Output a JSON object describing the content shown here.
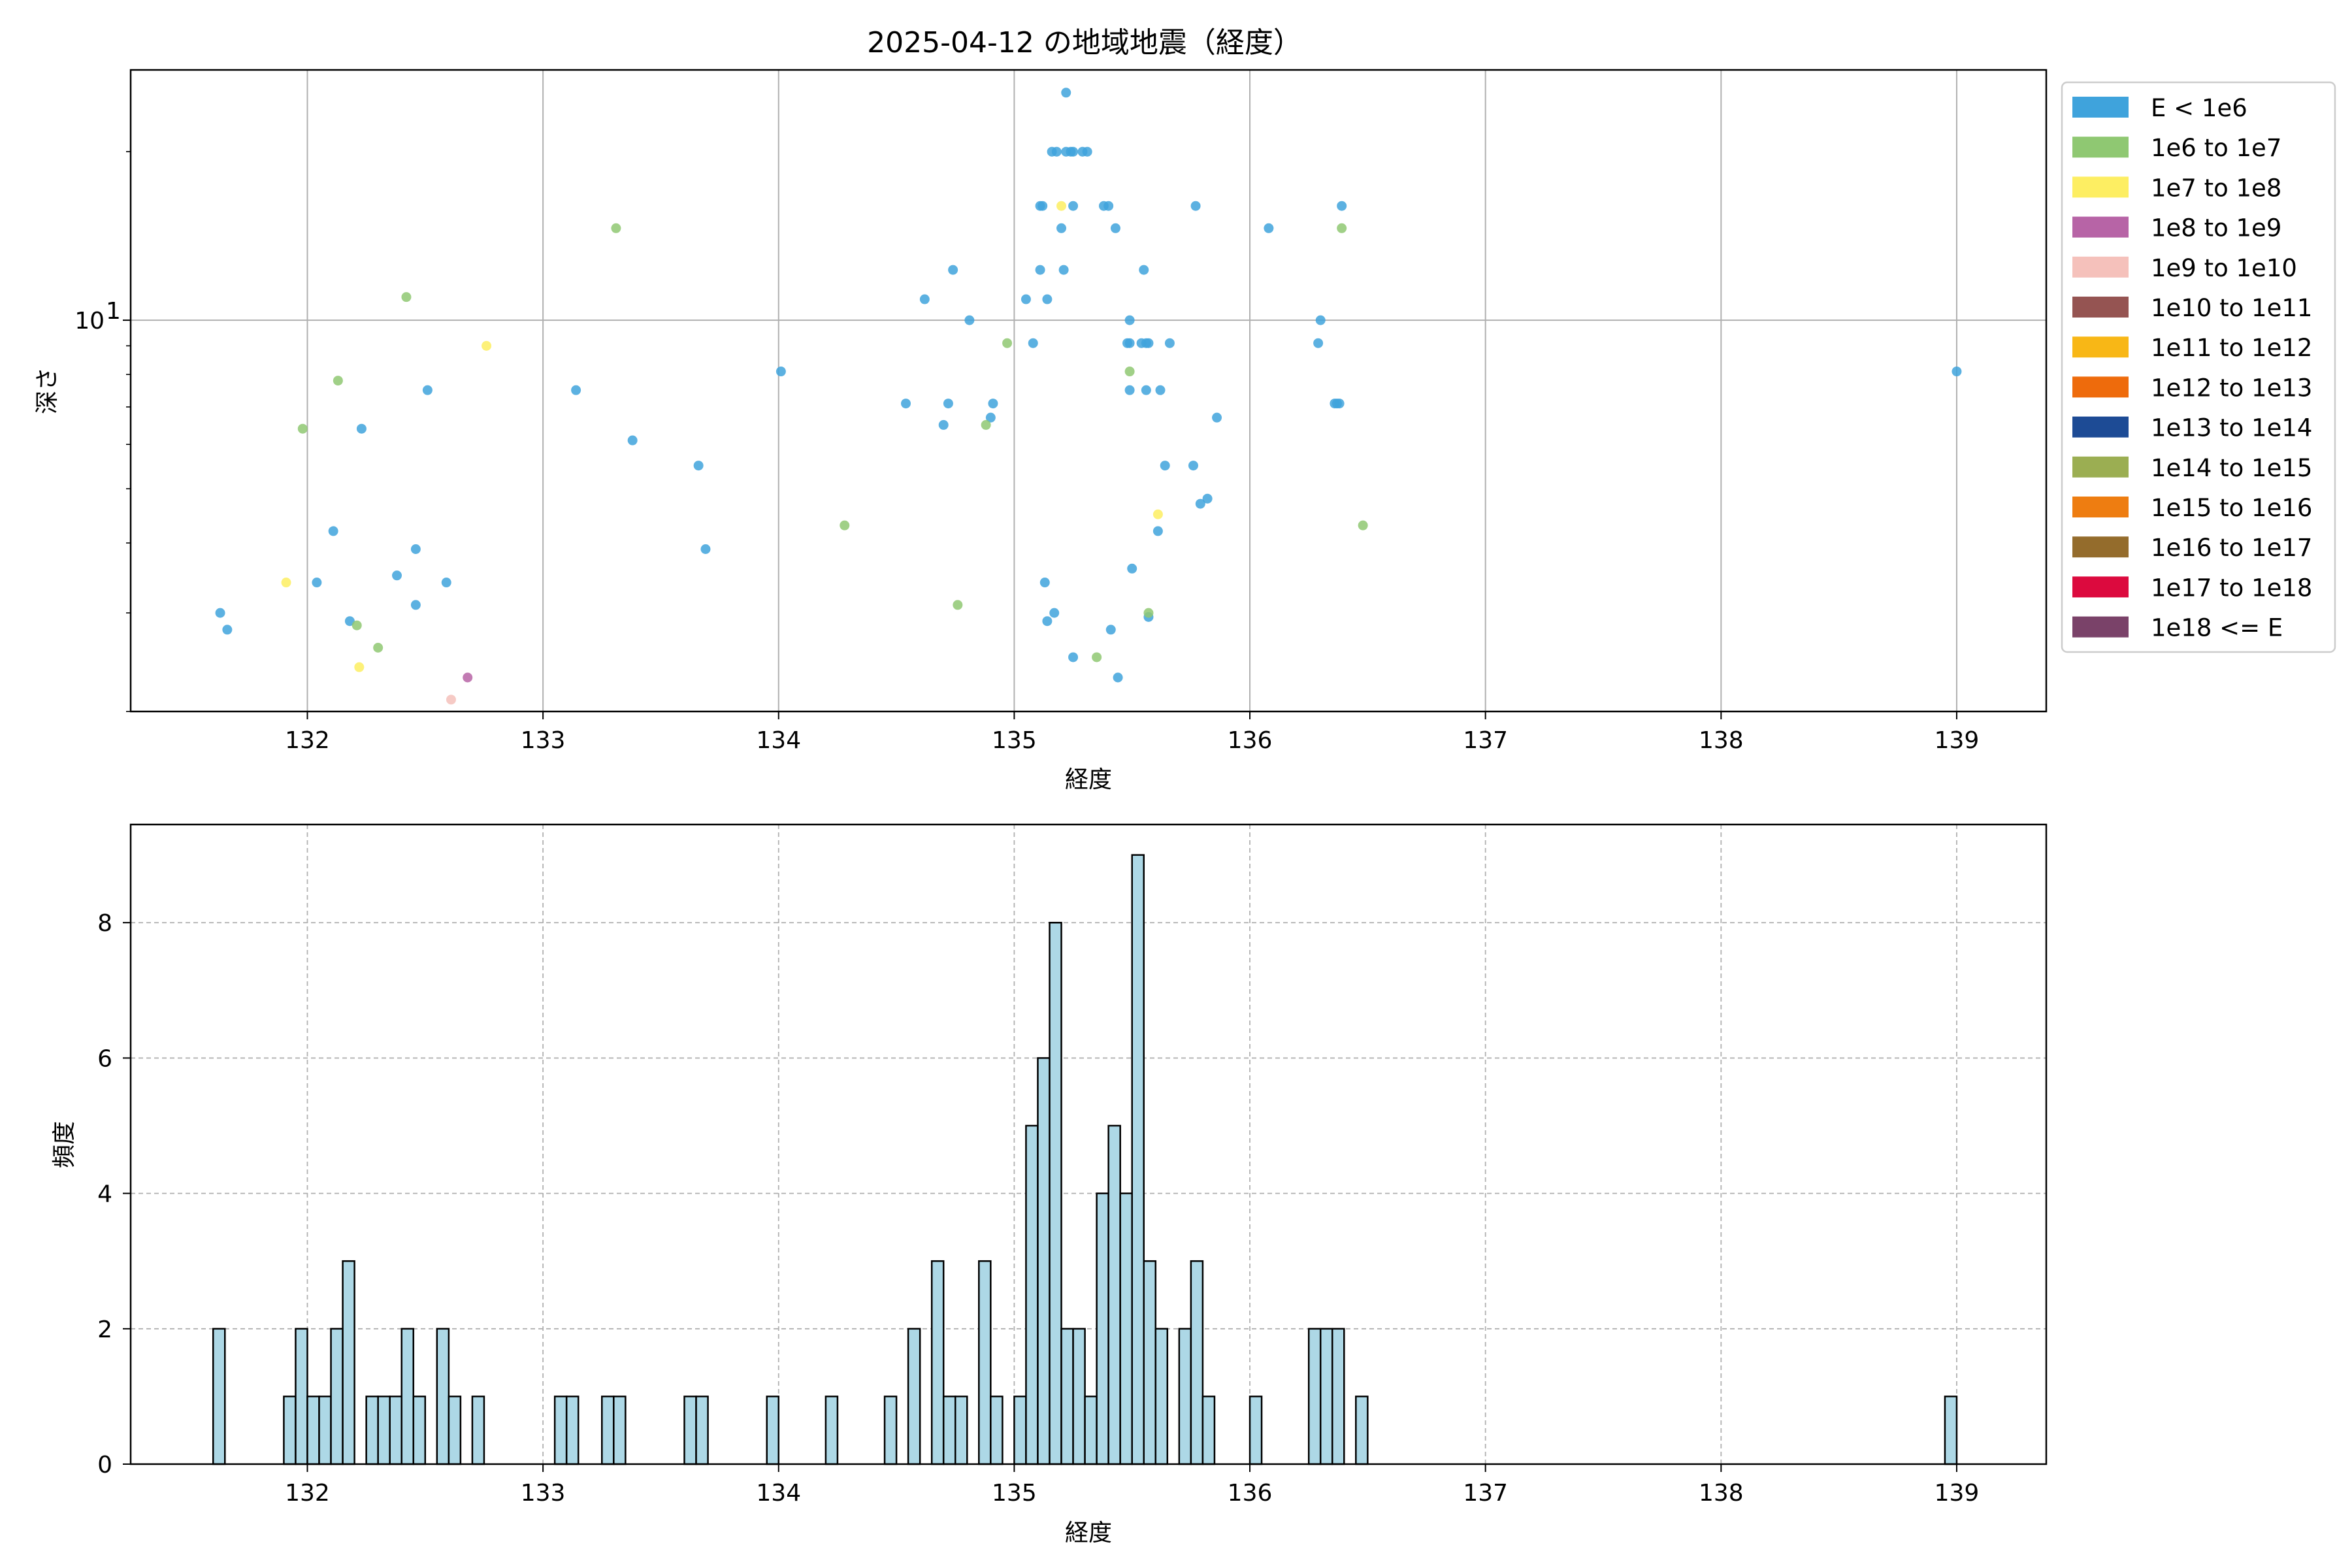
{
  "chart_data": [
    {
      "type": "scatter",
      "title": "2025-04-12 の地域地震（経度）",
      "xlabel": "経度",
      "ylabel": "深さ",
      "xlim": [
        131.25,
        139.38
      ],
      "ylim": [
        2.0,
        28.0
      ],
      "yscale": "log",
      "grid": true,
      "legend_position": "outside-right",
      "xticks": [
        "132",
        "133",
        "134",
        "135",
        "136",
        "137",
        "138",
        "139"
      ],
      "yticks": [
        {
          "value": 10,
          "label": "10",
          "exp": "1"
        }
      ],
      "legend": [
        {
          "label": "E < 1e6",
          "color": "#3fa3dc"
        },
        {
          "label": "1e6 to 1e7",
          "color": "#8fc872"
        },
        {
          "label": "1e7 to 1e8",
          "color": "#fdee62"
        },
        {
          "label": "1e8 to 1e9",
          "color": "#b764a6"
        },
        {
          "label": "1e9 to 1e10",
          "color": "#f5c1bb"
        },
        {
          "label": "1e10 to 1e11",
          "color": "#955452"
        },
        {
          "label": "1e11 to 1e12",
          "color": "#f8b716"
        },
        {
          "label": "1e12 to 1e13",
          "color": "#ee6b0c"
        },
        {
          "label": "1e13 to 1e14",
          "color": "#1d4b95"
        },
        {
          "label": "1e14 to 1e15",
          "color": "#9bae52"
        },
        {
          "label": "1e15 to 1e16",
          "color": "#ee7d11"
        },
        {
          "label": "1e16 to 1e17",
          "color": "#946c2c"
        },
        {
          "label": "1e17 to 1e18",
          "color": "#dc0a3e"
        },
        {
          "label": "1e18 <= E",
          "color": "#7a4269"
        }
      ],
      "series": [
        {
          "name": "E < 1e6",
          "color": "#3fa3dc",
          "points": [
            [
              131.63,
              3.0
            ],
            [
              131.66,
              2.8
            ],
            [
              132.04,
              3.4
            ],
            [
              132.11,
              4.2
            ],
            [
              132.18,
              2.9
            ],
            [
              132.23,
              6.4
            ],
            [
              132.38,
              3.5
            ],
            [
              132.46,
              3.9
            ],
            [
              132.46,
              3.1
            ],
            [
              132.51,
              7.5
            ],
            [
              132.59,
              3.4
            ],
            [
              133.14,
              7.5
            ],
            [
              133.38,
              6.1
            ],
            [
              133.66,
              5.5
            ],
            [
              133.69,
              3.9
            ],
            [
              134.01,
              8.1
            ],
            [
              134.54,
              7.1
            ],
            [
              134.62,
              10.9
            ],
            [
              134.7,
              6.5
            ],
            [
              134.72,
              7.1
            ],
            [
              134.74,
              12.3
            ],
            [
              134.81,
              10.0
            ],
            [
              134.9,
              6.7
            ],
            [
              134.91,
              7.1
            ],
            [
              135.05,
              10.9
            ],
            [
              135.08,
              9.1
            ],
            [
              135.11,
              12.3
            ],
            [
              135.11,
              16.0
            ],
            [
              135.12,
              16.0
            ],
            [
              135.13,
              3.4
            ],
            [
              135.14,
              2.9
            ],
            [
              135.14,
              10.9
            ],
            [
              135.16,
              20.0
            ],
            [
              135.17,
              3.0
            ],
            [
              135.18,
              20.0
            ],
            [
              135.2,
              14.6
            ],
            [
              135.21,
              12.3
            ],
            [
              135.22,
              20.0
            ],
            [
              135.22,
              25.5
            ],
            [
              135.24,
              20.0
            ],
            [
              135.25,
              20.0
            ],
            [
              135.25,
              16.0
            ],
            [
              135.25,
              2.5
            ],
            [
              135.29,
              20.0
            ],
            [
              135.31,
              20.0
            ],
            [
              135.38,
              16.0
            ],
            [
              135.4,
              16.0
            ],
            [
              135.41,
              2.8
            ],
            [
              135.43,
              14.6
            ],
            [
              135.44,
              2.3
            ],
            [
              135.48,
              9.1
            ],
            [
              135.49,
              10.0
            ],
            [
              135.49,
              7.5
            ],
            [
              135.49,
              9.1
            ],
            [
              135.5,
              3.6
            ],
            [
              135.54,
              9.1
            ],
            [
              135.55,
              12.3
            ],
            [
              135.56,
              9.1
            ],
            [
              135.56,
              7.5
            ],
            [
              135.57,
              9.1
            ],
            [
              135.57,
              2.95
            ],
            [
              135.61,
              4.2
            ],
            [
              135.62,
              7.5
            ],
            [
              135.64,
              5.5
            ],
            [
              135.66,
              9.1
            ],
            [
              135.76,
              5.5
            ],
            [
              135.77,
              16.0
            ],
            [
              135.79,
              4.7
            ],
            [
              135.82,
              4.8
            ],
            [
              135.86,
              6.7
            ],
            [
              136.08,
              14.6
            ],
            [
              136.29,
              9.1
            ],
            [
              136.3,
              10.0
            ],
            [
              136.36,
              7.1
            ],
            [
              136.37,
              7.1
            ],
            [
              136.38,
              7.1
            ],
            [
              136.39,
              16.0
            ],
            [
              139.0,
              8.1
            ]
          ]
        },
        {
          "name": "1e6 to 1e7",
          "color": "#8fc872",
          "points": [
            [
              131.98,
              6.4
            ],
            [
              132.13,
              7.8
            ],
            [
              132.21,
              2.85
            ],
            [
              132.42,
              11.0
            ],
            [
              132.3,
              2.6
            ],
            [
              133.31,
              14.6
            ],
            [
              134.28,
              4.3
            ],
            [
              134.76,
              3.1
            ],
            [
              134.88,
              6.5
            ],
            [
              134.97,
              9.1
            ],
            [
              135.35,
              2.5
            ],
            [
              135.49,
              8.1
            ],
            [
              135.57,
              3.0
            ],
            [
              136.39,
              14.6
            ],
            [
              136.48,
              4.3
            ]
          ]
        },
        {
          "name": "1e7 to 1e8",
          "color": "#fdee62",
          "points": [
            [
              131.91,
              3.4
            ],
            [
              132.22,
              2.4
            ],
            [
              132.76,
              9.0
            ],
            [
              135.2,
              16.0
            ],
            [
              135.61,
              4.5
            ]
          ]
        },
        {
          "name": "1e8 to 1e9",
          "color": "#b764a6",
          "points": [
            [
              132.68,
              2.3
            ]
          ]
        },
        {
          "name": "1e9 to 1e10",
          "color": "#f5c1bb",
          "points": [
            [
              132.61,
              2.1
            ]
          ]
        }
      ]
    },
    {
      "type": "bar",
      "title": "",
      "xlabel": "経度",
      "ylabel": "頻度",
      "xlim": [
        131.25,
        139.38
      ],
      "ylim": [
        0,
        9.45
      ],
      "grid": true,
      "bin_width": 0.05,
      "bar_color": "#add8e6",
      "edge_color": "#000000",
      "xticks": [
        "132",
        "133",
        "134",
        "135",
        "136",
        "137",
        "138",
        "139"
      ],
      "yticks": [
        "0",
        "2",
        "4",
        "6",
        "8"
      ],
      "bins": [
        [
          131.6,
          2
        ],
        [
          131.9,
          1
        ],
        [
          131.95,
          2
        ],
        [
          132.0,
          1
        ],
        [
          132.05,
          1
        ],
        [
          132.1,
          2
        ],
        [
          132.15,
          3
        ],
        [
          132.25,
          1
        ],
        [
          132.3,
          1
        ],
        [
          132.35,
          1
        ],
        [
          132.4,
          2
        ],
        [
          132.45,
          1
        ],
        [
          132.55,
          2
        ],
        [
          132.6,
          1
        ],
        [
          132.7,
          1
        ],
        [
          133.05,
          1
        ],
        [
          133.1,
          1
        ],
        [
          133.25,
          1
        ],
        [
          133.3,
          1
        ],
        [
          133.6,
          1
        ],
        [
          133.65,
          1
        ],
        [
          133.95,
          1
        ],
        [
          134.2,
          1
        ],
        [
          134.45,
          1
        ],
        [
          134.55,
          2
        ],
        [
          134.65,
          3
        ],
        [
          134.7,
          1
        ],
        [
          134.75,
          1
        ],
        [
          134.85,
          3
        ],
        [
          134.9,
          1
        ],
        [
          135.0,
          1
        ],
        [
          135.05,
          5
        ],
        [
          135.1,
          6
        ],
        [
          135.15,
          8
        ],
        [
          135.2,
          2
        ],
        [
          135.25,
          2
        ],
        [
          135.3,
          1
        ],
        [
          135.35,
          4
        ],
        [
          135.4,
          5
        ],
        [
          135.45,
          4
        ],
        [
          135.5,
          9
        ],
        [
          135.55,
          3
        ],
        [
          135.6,
          2
        ],
        [
          135.7,
          2
        ],
        [
          135.75,
          3
        ],
        [
          135.8,
          1
        ],
        [
          136.0,
          1
        ],
        [
          136.25,
          2
        ],
        [
          136.3,
          2
        ],
        [
          136.35,
          2
        ],
        [
          136.45,
          1
        ],
        [
          138.95,
          1
        ]
      ]
    }
  ]
}
